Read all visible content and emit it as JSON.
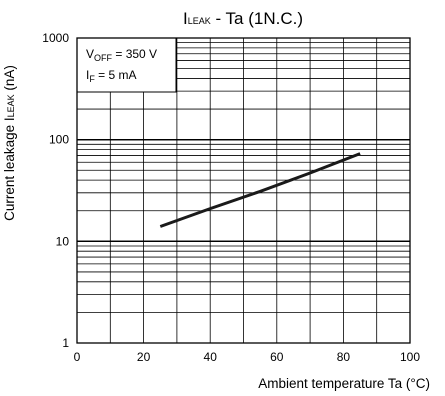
{
  "chart_data": {
    "type": "line",
    "title": {
      "main": "I",
      "sub": "LEAK",
      "rest": " - Ta (1N.C.)"
    },
    "xlabel": "Ambient temperature Ta (°C)",
    "ylabel": {
      "main": "Current leakage I",
      "sub": "LEAK",
      "rest": " (nA)"
    },
    "xlim": [
      0,
      100
    ],
    "ylim": [
      1,
      1000
    ],
    "yscale": "log",
    "grid": true,
    "x_ticks": [
      "0",
      "20",
      "40",
      "60",
      "80",
      "100"
    ],
    "y_ticks": [
      "1",
      "10",
      "100",
      "1000"
    ],
    "annotation": [
      {
        "main": "V",
        "sub": "OFF",
        "rest": " = 350 V"
      },
      {
        "main": "I",
        "sub": "F",
        "rest": " = 5 mA"
      }
    ],
    "annotation_position": "top-left",
    "series": [
      {
        "x": [
          25,
          40,
          55,
          70,
          85
        ],
        "y": [
          14,
          21,
          31,
          47,
          73
        ],
        "color": "#1a1a1a"
      }
    ]
  }
}
